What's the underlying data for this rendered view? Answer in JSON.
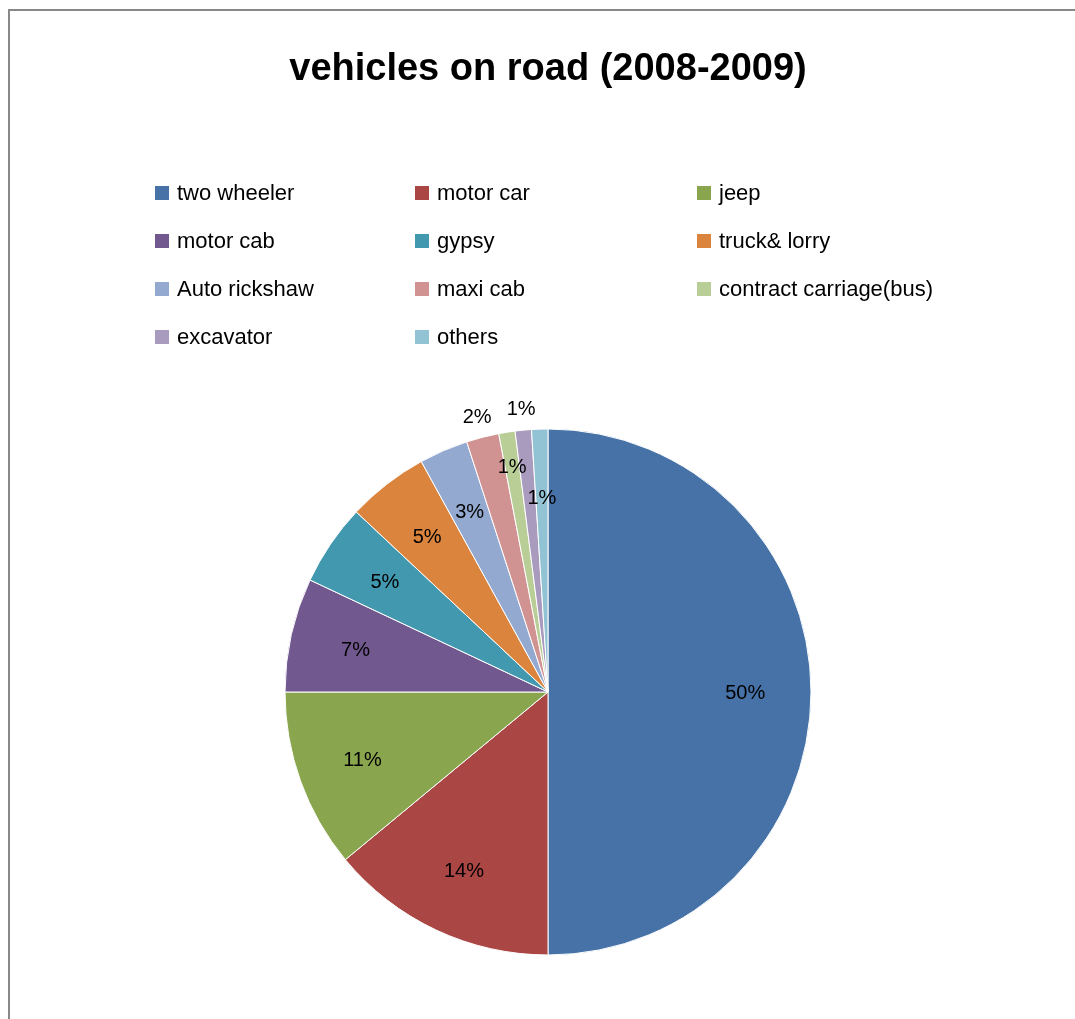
{
  "chart_data": {
    "type": "pie",
    "title": "vehicles on road (2008-2009)",
    "categories": [
      "two wheeler",
      "motor car",
      "jeep",
      "motor cab",
      "gypsy",
      "truck& lorry",
      "Auto rickshaw",
      "maxi cab",
      "contract carriage(bus)",
      "excavator",
      "others"
    ],
    "values": [
      50,
      14,
      11,
      7,
      5,
      5,
      3,
      2,
      1,
      1,
      1
    ],
    "colors": [
      "#4672a8",
      "#aa4643",
      "#89a54e",
      "#71588f",
      "#4198af",
      "#db843d",
      "#93a9cf",
      "#d19392",
      "#b9cd96",
      "#a99bbd",
      "#92c3d4"
    ],
    "value_labels": [
      "50%",
      "14%",
      "11%",
      "7%",
      "5%",
      "5%",
      "3%",
      "2%",
      "1%",
      "1%",
      "1%"
    ],
    "legend": "top"
  }
}
